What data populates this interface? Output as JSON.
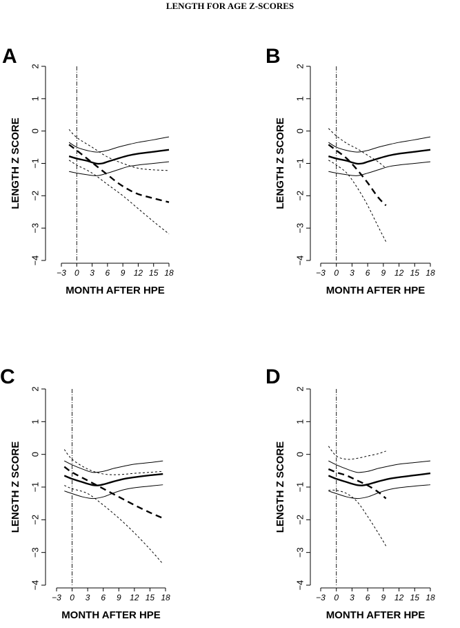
{
  "figure_title": "LENGTH FOR AGE Z-SCORES",
  "chart_data": [
    {
      "type": "line",
      "panel": "A",
      "xlabel": "MONTH AFTER HPE",
      "ylabel": "LENGTH Z SCORE",
      "xlim": [
        -3,
        18
      ],
      "ylim": [
        -4,
        2
      ],
      "xticks": [
        -3,
        0,
        3,
        6,
        9,
        12,
        15,
        18
      ],
      "yticks": [
        -4,
        -3,
        -2,
        -1,
        0,
        1,
        2
      ],
      "reference_x": 0,
      "series": [
        {
          "role": "reference-mean",
          "style": "thick-solid",
          "x": [
            -1.5,
            0,
            2,
            3,
            4,
            5,
            6,
            8,
            10,
            12,
            15,
            18
          ],
          "y": [
            -0.78,
            -0.85,
            -0.92,
            -0.97,
            -1.01,
            -1.0,
            -0.95,
            -0.85,
            -0.76,
            -0.7,
            -0.64,
            -0.58
          ]
        },
        {
          "role": "reference-upper",
          "style": "thin-solid",
          "x": [
            -1.5,
            0,
            2,
            4,
            6,
            8,
            10,
            12,
            15,
            18
          ],
          "y": [
            -0.35,
            -0.5,
            -0.6,
            -0.65,
            -0.6,
            -0.5,
            -0.42,
            -0.35,
            -0.27,
            -0.18
          ]
        },
        {
          "role": "reference-lower",
          "style": "thin-solid",
          "x": [
            -1.5,
            0,
            2,
            4,
            6,
            8,
            10,
            12,
            15,
            18
          ],
          "y": [
            -1.25,
            -1.3,
            -1.35,
            -1.38,
            -1.3,
            -1.2,
            -1.1,
            -1.05,
            -1.0,
            -0.95
          ]
        },
        {
          "role": "study-mean",
          "style": "thick-dashed",
          "x": [
            -1.5,
            0,
            2,
            4,
            6,
            8,
            10,
            12,
            15,
            18
          ],
          "y": [
            -0.42,
            -0.6,
            -0.85,
            -1.1,
            -1.35,
            -1.6,
            -1.8,
            -1.95,
            -2.08,
            -2.2
          ]
        },
        {
          "role": "study-upper",
          "style": "thin-dotted",
          "x": [
            -1.5,
            0,
            3,
            6,
            9,
            12,
            15,
            18
          ],
          "y": [
            0.05,
            -0.2,
            -0.5,
            -0.8,
            -1.0,
            -1.15,
            -1.2,
            -1.22
          ]
        },
        {
          "role": "study-lower",
          "style": "thin-dotted",
          "x": [
            -1.5,
            0,
            3,
            6,
            9,
            12,
            15,
            18
          ],
          "y": [
            -0.9,
            -1.05,
            -1.3,
            -1.65,
            -2.0,
            -2.4,
            -2.8,
            -3.18
          ]
        }
      ]
    },
    {
      "type": "line",
      "panel": "B",
      "xlabel": "MONTH AFTER HPE",
      "ylabel": "LENGTH Z SCORE",
      "xlim": [
        -3,
        18
      ],
      "ylim": [
        -4,
        2
      ],
      "xticks": [
        -3,
        0,
        3,
        6,
        9,
        12,
        15,
        18
      ],
      "yticks": [
        -4,
        -3,
        -2,
        -1,
        0,
        1,
        2
      ],
      "reference_x": 0,
      "series": [
        {
          "role": "reference-mean",
          "style": "thick-solid",
          "x": [
            -1.5,
            0,
            2,
            3,
            4,
            5,
            6,
            8,
            10,
            12,
            15,
            18
          ],
          "y": [
            -0.78,
            -0.85,
            -0.92,
            -0.97,
            -1.01,
            -1.0,
            -0.95,
            -0.85,
            -0.76,
            -0.7,
            -0.64,
            -0.58
          ]
        },
        {
          "role": "reference-upper",
          "style": "thin-solid",
          "x": [
            -1.5,
            0,
            2,
            4,
            6,
            8,
            10,
            12,
            15,
            18
          ],
          "y": [
            -0.35,
            -0.5,
            -0.6,
            -0.65,
            -0.6,
            -0.5,
            -0.42,
            -0.35,
            -0.27,
            -0.18
          ]
        },
        {
          "role": "reference-lower",
          "style": "thin-solid",
          "x": [
            -1.5,
            0,
            2,
            4,
            6,
            8,
            10,
            12,
            15,
            18
          ],
          "y": [
            -1.25,
            -1.3,
            -1.35,
            -1.38,
            -1.3,
            -1.2,
            -1.1,
            -1.05,
            -1.0,
            -0.95
          ]
        },
        {
          "role": "study-mean",
          "style": "thick-dashed",
          "x": [
            -1.5,
            0,
            2,
            4,
            6,
            8,
            9.5
          ],
          "y": [
            -0.42,
            -0.6,
            -0.85,
            -1.2,
            -1.6,
            -2.05,
            -2.3
          ]
        },
        {
          "role": "study-upper",
          "style": "thin-dotted",
          "x": [
            -1.5,
            0,
            2,
            4,
            6,
            8,
            9.5
          ],
          "y": [
            0.08,
            -0.15,
            -0.38,
            -0.55,
            -0.75,
            -0.95,
            -1.15
          ]
        },
        {
          "role": "study-lower",
          "style": "thin-dotted",
          "x": [
            -1.5,
            0,
            2,
            4,
            6,
            8,
            9.5
          ],
          "y": [
            -0.9,
            -1.05,
            -1.3,
            -1.75,
            -2.3,
            -2.95,
            -3.42
          ]
        }
      ]
    },
    {
      "type": "line",
      "panel": "C",
      "xlabel": "MONTH AFTER HPE",
      "ylabel": "LENGTH Z SCORE",
      "xlim": [
        -3,
        18
      ],
      "ylim": [
        -4,
        2
      ],
      "xticks": [
        -3,
        0,
        3,
        6,
        9,
        12,
        15,
        18
      ],
      "yticks": [
        -4,
        -3,
        -2,
        -1,
        0,
        1,
        2
      ],
      "reference_x": 0,
      "series": [
        {
          "role": "reference-mean",
          "style": "thick-solid",
          "x": [
            -1.5,
            0,
            2,
            3,
            4,
            5,
            6,
            8,
            10,
            12,
            15,
            17.5
          ],
          "y": [
            -0.65,
            -0.75,
            -0.85,
            -0.9,
            -0.94,
            -0.95,
            -0.92,
            -0.83,
            -0.75,
            -0.7,
            -0.64,
            -0.6
          ]
        },
        {
          "role": "reference-upper",
          "style": "thin-solid",
          "x": [
            -1.5,
            0,
            2,
            4,
            6,
            8,
            10,
            12,
            15,
            17.5
          ],
          "y": [
            -0.2,
            -0.32,
            -0.45,
            -0.55,
            -0.52,
            -0.43,
            -0.36,
            -0.3,
            -0.25,
            -0.2
          ]
        },
        {
          "role": "reference-lower",
          "style": "thin-solid",
          "x": [
            -1.5,
            0,
            2,
            4,
            6,
            8,
            10,
            12,
            15,
            17.5
          ],
          "y": [
            -1.12,
            -1.2,
            -1.3,
            -1.35,
            -1.3,
            -1.18,
            -1.08,
            -1.02,
            -0.97,
            -0.93
          ]
        },
        {
          "role": "study-mean",
          "style": "thick-dashed",
          "x": [
            -1.5,
            0,
            3,
            6,
            9,
            12,
            15,
            17.5
          ],
          "y": [
            -0.38,
            -0.55,
            -0.8,
            -1.05,
            -1.3,
            -1.55,
            -1.78,
            -1.95
          ]
        },
        {
          "role": "study-upper",
          "style": "thin-dotted",
          "x": [
            -1.5,
            0,
            3,
            6,
            9,
            12,
            15,
            17.5
          ],
          "y": [
            0.15,
            -0.15,
            -0.45,
            -0.6,
            -0.62,
            -0.58,
            -0.55,
            -0.52
          ]
        },
        {
          "role": "study-lower",
          "style": "thin-dotted",
          "x": [
            -1.5,
            0,
            3,
            6,
            9,
            12,
            15,
            17.5
          ],
          "y": [
            -0.95,
            -1.05,
            -1.2,
            -1.55,
            -1.95,
            -2.4,
            -2.9,
            -3.35
          ]
        }
      ]
    },
    {
      "type": "line",
      "panel": "D",
      "xlabel": "MONTH AFTER HPE",
      "ylabel": "LENGTH Z SCORE",
      "xlim": [
        -3,
        18
      ],
      "ylim": [
        -4,
        2
      ],
      "xticks": [
        -3,
        0,
        3,
        6,
        9,
        12,
        15,
        18
      ],
      "yticks": [
        -4,
        -3,
        -2,
        -1,
        0,
        1,
        2
      ],
      "reference_x": 0,
      "series": [
        {
          "role": "reference-mean",
          "style": "thick-solid",
          "x": [
            -1.5,
            0,
            2,
            3,
            4,
            5,
            6,
            8,
            10,
            12,
            15,
            18
          ],
          "y": [
            -0.65,
            -0.75,
            -0.85,
            -0.9,
            -0.94,
            -0.95,
            -0.92,
            -0.83,
            -0.75,
            -0.7,
            -0.64,
            -0.58
          ]
        },
        {
          "role": "reference-upper",
          "style": "thin-solid",
          "x": [
            -1.5,
            0,
            2,
            4,
            6,
            8,
            10,
            12,
            15,
            18
          ],
          "y": [
            -0.2,
            -0.32,
            -0.45,
            -0.55,
            -0.52,
            -0.43,
            -0.36,
            -0.3,
            -0.25,
            -0.2
          ]
        },
        {
          "role": "reference-lower",
          "style": "thin-solid",
          "x": [
            -1.5,
            0,
            2,
            4,
            6,
            8,
            10,
            12,
            15,
            18
          ],
          "y": [
            -1.12,
            -1.2,
            -1.3,
            -1.35,
            -1.3,
            -1.18,
            -1.08,
            -1.02,
            -0.97,
            -0.93
          ]
        },
        {
          "role": "study-mean",
          "style": "thick-dashed",
          "x": [
            -1.5,
            0,
            2,
            4,
            6,
            8,
            9.5
          ],
          "y": [
            -0.45,
            -0.55,
            -0.65,
            -0.8,
            -0.95,
            -1.15,
            -1.35
          ]
        },
        {
          "role": "study-upper",
          "style": "thin-dotted",
          "x": [
            -1.5,
            0,
            2,
            4,
            6,
            8,
            9.5
          ],
          "y": [
            0.25,
            -0.05,
            -0.15,
            -0.12,
            -0.05,
            0.02,
            0.1
          ]
        },
        {
          "role": "study-lower",
          "style": "thin-dotted",
          "x": [
            -1.5,
            0,
            2,
            4,
            6,
            8,
            9.5
          ],
          "y": [
            -1.1,
            -1.1,
            -1.2,
            -1.45,
            -1.9,
            -2.4,
            -2.8
          ]
        }
      ]
    }
  ]
}
